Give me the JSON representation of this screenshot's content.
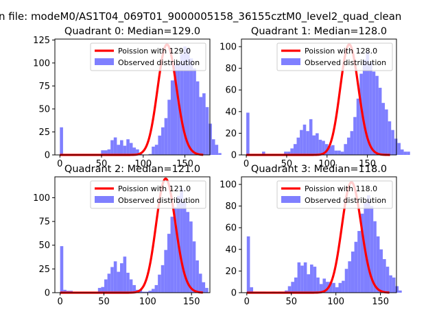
{
  "suptitle": "n file: modeM0/AS1T04_069T01_9000005158_36155cztM0_level2_quad_clean",
  "colors": {
    "hist": "#7f7fff",
    "fit": "#ff0000",
    "axis": "#000000"
  },
  "chart_data": [
    {
      "type": "bar",
      "title": "Quadrant 0: Median=129.0",
      "legend": [
        "Poission with 129.0",
        "Observed distribution"
      ],
      "legend_position": "top-right",
      "xlim": [
        -6,
        180
      ],
      "ylim": [
        0,
        126
      ],
      "xticks": [
        0,
        50,
        100,
        150
      ],
      "yticks": [
        0,
        25,
        50,
        75,
        100,
        125
      ],
      "bin_start": 0,
      "bin_width": 3.8,
      "counts": [
        30,
        0,
        0,
        0,
        0,
        0,
        0,
        0,
        0,
        0,
        0,
        0,
        0,
        5,
        5,
        6,
        16,
        19,
        11,
        16,
        10,
        17,
        13,
        8,
        6,
        1,
        0,
        0,
        1,
        9,
        11,
        21,
        30,
        40,
        60,
        81,
        98,
        100,
        110,
        118,
        116,
        105,
        94,
        80,
        63,
        67,
        52,
        34,
        17,
        11,
        2,
        0,
        0,
        0,
        0,
        0,
        0,
        0,
        0,
        0
      ],
      "fit_lambda": 129.0,
      "fit_peak": 120
    },
    {
      "type": "bar",
      "title": "Quadrant 1: Median=128.0",
      "legend": [
        "Poission with 128.0",
        "Observed distribution"
      ],
      "legend_position": "top-right",
      "xlim": [
        -6,
        186
      ],
      "ylim": [
        0,
        107
      ],
      "xticks": [
        0,
        50,
        100,
        150
      ],
      "yticks": [
        0,
        20,
        40,
        60,
        80,
        100
      ],
      "bin_start": 0,
      "bin_width": 3.9,
      "counts": [
        39,
        0,
        0,
        0,
        0,
        3,
        0,
        0,
        0,
        0,
        0,
        0,
        3,
        3,
        6,
        10,
        16,
        23,
        28,
        22,
        33,
        18,
        20,
        14,
        13,
        10,
        8,
        9,
        4,
        4,
        3,
        10,
        16,
        22,
        35,
        52,
        75,
        88,
        95,
        86,
        77,
        73,
        62,
        48,
        42,
        31,
        23,
        15,
        11,
        5,
        3,
        3,
        0,
        0,
        0,
        0,
        0,
        0,
        0,
        0
      ],
      "fit_lambda": 128.0,
      "fit_peak": 102
    },
    {
      "type": "bar",
      "title": "Quadrant 2: Median=121.0",
      "legend": [
        "Poission with 121.0",
        "Observed distribution"
      ],
      "legend_position": "top-right",
      "xlim": [
        -6,
        171
      ],
      "ylim": [
        0,
        122
      ],
      "xticks": [
        0,
        50,
        100,
        150
      ],
      "yticks": [
        0,
        25,
        50,
        75,
        100
      ],
      "bin_start": 0,
      "bin_width": 3.6,
      "counts": [
        49,
        3,
        2,
        2,
        1,
        1,
        1,
        1,
        1,
        1,
        1,
        1,
        5,
        6,
        14,
        20,
        27,
        33,
        22,
        31,
        38,
        21,
        14,
        8,
        3,
        3,
        1,
        1,
        2,
        4,
        8,
        19,
        29,
        45,
        62,
        80,
        90,
        102,
        110,
        96,
        85,
        75,
        54,
        34,
        20,
        11,
        5,
        0,
        0,
        0,
        0,
        0,
        0,
        0,
        0,
        0,
        0,
        0,
        0,
        0
      ],
      "fit_lambda": 121.0,
      "fit_peak": 120
    },
    {
      "type": "bar",
      "title": "Quadrant 3: Median=118.0",
      "legend": [
        "Poission with 118.0",
        "Observed distribution"
      ],
      "legend_position": "top-right",
      "xlim": [
        -6,
        168
      ],
      "ylim": [
        0,
        107
      ],
      "xticks": [
        0,
        50,
        100,
        150
      ],
      "yticks": [
        0,
        20,
        40,
        60,
        80,
        100
      ],
      "bin_start": 0,
      "bin_width": 3.55,
      "counts": [
        52,
        5,
        1,
        1,
        1,
        1,
        0,
        0,
        1,
        0,
        1,
        1,
        2,
        6,
        10,
        14,
        28,
        25,
        28,
        17,
        26,
        24,
        14,
        8,
        13,
        10,
        10,
        9,
        5,
        9,
        11,
        22,
        29,
        38,
        47,
        57,
        73,
        83,
        90,
        80,
        66,
        52,
        40,
        31,
        24,
        16,
        14,
        6,
        2,
        0,
        0,
        0,
        0,
        0,
        0,
        0,
        0,
        0,
        0,
        0
      ],
      "fit_lambda": 118.0,
      "fit_peak": 102
    }
  ]
}
